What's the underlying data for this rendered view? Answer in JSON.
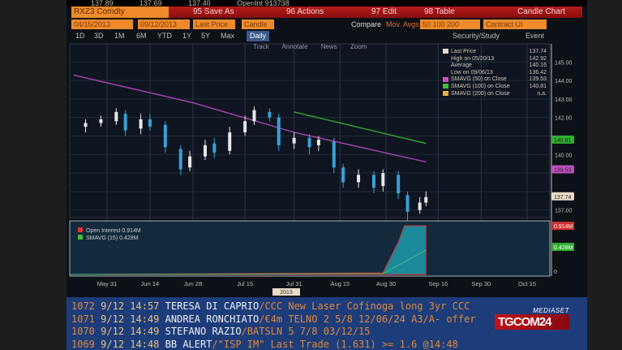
{
  "topbar": {
    "items": [
      "137.89",
      "137.69",
      "137.40",
      "OpenInt 913738"
    ]
  },
  "header": {
    "ticker": "RXZ3 Comdty",
    "save_as": "95 Save As",
    "actions": "96 Actions",
    "edit": "97 Edit",
    "table": "98 Table",
    "chart_type": "Candle Chart"
  },
  "controls": {
    "start_date": "04/15/2013",
    "end_date": "09/12/2013",
    "field": "Last Price",
    "style": "Candle",
    "compare": "Compare",
    "mov_avgs": "Mov. Avgs",
    "mov_avgs_value": "50 100 200",
    "contract": "Contract UI"
  },
  "periods": [
    "1D",
    "3D",
    "1M",
    "6M",
    "YTD",
    "1Y",
    "5Y",
    "Max"
  ],
  "frequency": "Daily",
  "right_tools": {
    "security": "Security/Study",
    "event": "Event"
  },
  "tools": [
    "Track",
    "Annotate",
    "News",
    "Zoom"
  ],
  "legend": [
    {
      "label": "Last Price",
      "value": "137.74",
      "color": "#e8dcc8"
    },
    {
      "label": "High on 05/20/13",
      "value": "142.92",
      "color": ""
    },
    {
      "label": "Average",
      "value": "140.16",
      "color": ""
    },
    {
      "label": "Low on 09/06/13",
      "value": "136.42",
      "color": ""
    },
    {
      "label": "SMAVG (50) on Close",
      "value": "139.53",
      "color": "#d050c0"
    },
    {
      "label": "SMAVG (100) on Close",
      "value": "140.81",
      "color": "#40c040"
    },
    {
      "label": "SMAVG (200) on Close",
      "value": "n.a.",
      "color": "#e8b040"
    }
  ],
  "lower_legend": [
    {
      "label": "Open Interest",
      "value": "0.914M",
      "color": "#e03030"
    },
    {
      "label": "SMAVG (15)",
      "value": "0.428M",
      "color": "#40c040"
    }
  ],
  "chart_data": {
    "type": "candlestick",
    "ylim": [
      136.5,
      145.5
    ],
    "y_ticks": [
      "145.00",
      "144.00",
      "143.00",
      "142.00",
      "140.00",
      "137.00"
    ],
    "badges": [
      {
        "value": "140.81",
        "color": "#30b030"
      },
      {
        "value": "139.53",
        "color": "#c050c0"
      },
      {
        "value": "137.74",
        "color": "#e8dcc8"
      }
    ],
    "x_ticks": [
      "May 31",
      "Jun 14",
      "Jun 28",
      "Jul 15",
      "Jul 31",
      "Aug 15",
      "Aug 30",
      "Sep 16",
      "Sep 30",
      "Oct 15"
    ],
    "x_year_label": "2013",
    "candles": [
      {
        "date": "May 24",
        "open": 141.5,
        "close": 141.7,
        "high": 141.9,
        "low": 141.2
      },
      {
        "date": "May 29",
        "open": 141.7,
        "close": 141.9,
        "high": 142.1,
        "low": 141.5
      },
      {
        "date": "Jun 3",
        "open": 141.8,
        "close": 142.3,
        "high": 142.5,
        "low": 141.6
      },
      {
        "date": "Jun 6",
        "open": 142.2,
        "close": 141.3,
        "high": 142.4,
        "low": 141.0
      },
      {
        "date": "Jun 11",
        "open": 141.4,
        "close": 141.9,
        "high": 142.2,
        "low": 141.1
      },
      {
        "date": "Jun 14",
        "open": 141.9,
        "close": 141.5,
        "high": 142.2,
        "low": 141.3
      },
      {
        "date": "Jun 19",
        "open": 141.6,
        "close": 140.4,
        "high": 141.8,
        "low": 140.1
      },
      {
        "date": "Jun 24",
        "open": 140.3,
        "close": 139.2,
        "high": 140.5,
        "low": 138.9
      },
      {
        "date": "Jun 27",
        "open": 139.3,
        "close": 139.9,
        "high": 140.2,
        "low": 139.1
      },
      {
        "date": "Jul 2",
        "open": 139.9,
        "close": 140.5,
        "high": 140.8,
        "low": 139.7
      },
      {
        "date": "Jul 5",
        "open": 140.6,
        "close": 140.1,
        "high": 140.9,
        "low": 139.8
      },
      {
        "date": "Jul 10",
        "open": 140.2,
        "close": 141.2,
        "high": 141.5,
        "low": 140.0
      },
      {
        "date": "Jul 15",
        "open": 141.2,
        "close": 141.8,
        "high": 142.1,
        "low": 141.0
      },
      {
        "date": "Jul 18",
        "open": 141.8,
        "close": 142.4,
        "high": 142.6,
        "low": 141.6
      },
      {
        "date": "Jul 23",
        "open": 142.3,
        "close": 142.0,
        "high": 142.5,
        "low": 141.8
      },
      {
        "date": "Jul 26",
        "open": 142.0,
        "close": 140.5,
        "high": 142.2,
        "low": 140.2
      },
      {
        "date": "Jul 31",
        "open": 140.6,
        "close": 140.9,
        "high": 141.2,
        "low": 140.3
      },
      {
        "date": "Aug 5",
        "open": 140.9,
        "close": 140.4,
        "high": 141.1,
        "low": 140.0
      },
      {
        "date": "Aug 8",
        "open": 140.5,
        "close": 140.8,
        "high": 141.0,
        "low": 140.2
      },
      {
        "date": "Aug 13",
        "open": 140.7,
        "close": 139.3,
        "high": 140.9,
        "low": 139.0
      },
      {
        "date": "Aug 16",
        "open": 139.3,
        "close": 138.5,
        "high": 139.5,
        "low": 138.2
      },
      {
        "date": "Aug 21",
        "open": 138.5,
        "close": 138.9,
        "high": 139.2,
        "low": 138.2
      },
      {
        "date": "Aug 26",
        "open": 138.9,
        "close": 138.2,
        "high": 139.1,
        "low": 137.9
      },
      {
        "date": "Aug 29",
        "open": 138.3,
        "close": 139.0,
        "high": 139.2,
        "low": 138.0
      },
      {
        "date": "Sep 3",
        "open": 138.9,
        "close": 137.9,
        "high": 139.1,
        "low": 137.6
      },
      {
        "date": "Sep 6",
        "open": 137.8,
        "close": 136.9,
        "high": 138.0,
        "low": 136.4
      },
      {
        "date": "Sep 10",
        "open": 137.0,
        "close": 137.4,
        "high": 137.7,
        "low": 136.8
      },
      {
        "date": "Sep 12",
        "open": 137.4,
        "close": 137.7,
        "high": 138.0,
        "low": 137.2
      }
    ],
    "sma50": [
      {
        "date": "May 20",
        "value": 144.3
      },
      {
        "date": "Jun 28",
        "value": 142.8
      },
      {
        "date": "Jul 31",
        "value": 141.2
      },
      {
        "date": "Sep 12",
        "value": 139.6
      }
    ],
    "sma100": [
      {
        "date": "Jul 31",
        "value": 142.3
      },
      {
        "date": "Sep 12",
        "value": 140.6
      }
    ],
    "open_interest_badges": [
      "0.914M",
      "0.428M",
      "0"
    ]
  },
  "news": [
    {
      "num": "1072",
      "date": "9/12",
      "time": "14:57",
      "author": "TERESA DI CAPRIO",
      "text": "/CCC New Laser Cofinoga long 3yr CCC"
    },
    {
      "num": "1071",
      "date": "9/12",
      "time": "14:49",
      "author": "ANDREA RONCHIATO",
      "text": "/€4m TELNO 2 5/8 12/06/24 A3/A- offer"
    },
    {
      "num": "1070",
      "date": "9/12",
      "time": "14:49",
      "author": "STEFANO RAZIO",
      "text": "/BATSLN 5 7/8 03/12/15"
    },
    {
      "num": "1069",
      "date": "9/12",
      "time": "14:48",
      "author": "BB ALERT",
      "text": "/\"ISP IM\" Last Trade (1.631) >= 1.6 @14:48"
    }
  ],
  "logo": {
    "network": "MEDIASET",
    "brand": "TGCOM24"
  }
}
